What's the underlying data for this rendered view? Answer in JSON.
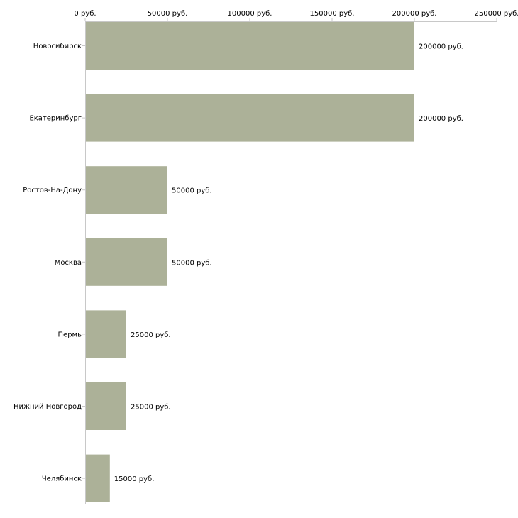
{
  "chart_data": {
    "type": "bar",
    "orientation": "horizontal",
    "categories": [
      "Новосибирск",
      "Екатеринбург",
      "Ростов-На-Дону",
      "Москва",
      "Пермь",
      "Нижний Новгород",
      "Челябинск"
    ],
    "values": [
      200000,
      200000,
      50000,
      50000,
      25000,
      25000,
      15000
    ],
    "value_labels": [
      "200000 руб.",
      "200000 руб.",
      "50000 руб.",
      "50000 руб.",
      "25000 руб.",
      "25000 руб.",
      "15000 руб."
    ],
    "xlim": [
      0,
      250000
    ],
    "x_ticks": [
      0,
      50000,
      100000,
      150000,
      200000,
      250000
    ],
    "x_tick_labels": [
      "0 руб.",
      "50000 руб.",
      "100000 руб.",
      "150000 руб.",
      "200000 руб.",
      "250000 руб."
    ],
    "axis_position": "top",
    "bar_color": "#acb198",
    "axis_color": "#c8c8c8",
    "title": "",
    "xlabel": "",
    "ylabel": "",
    "grid": false
  }
}
